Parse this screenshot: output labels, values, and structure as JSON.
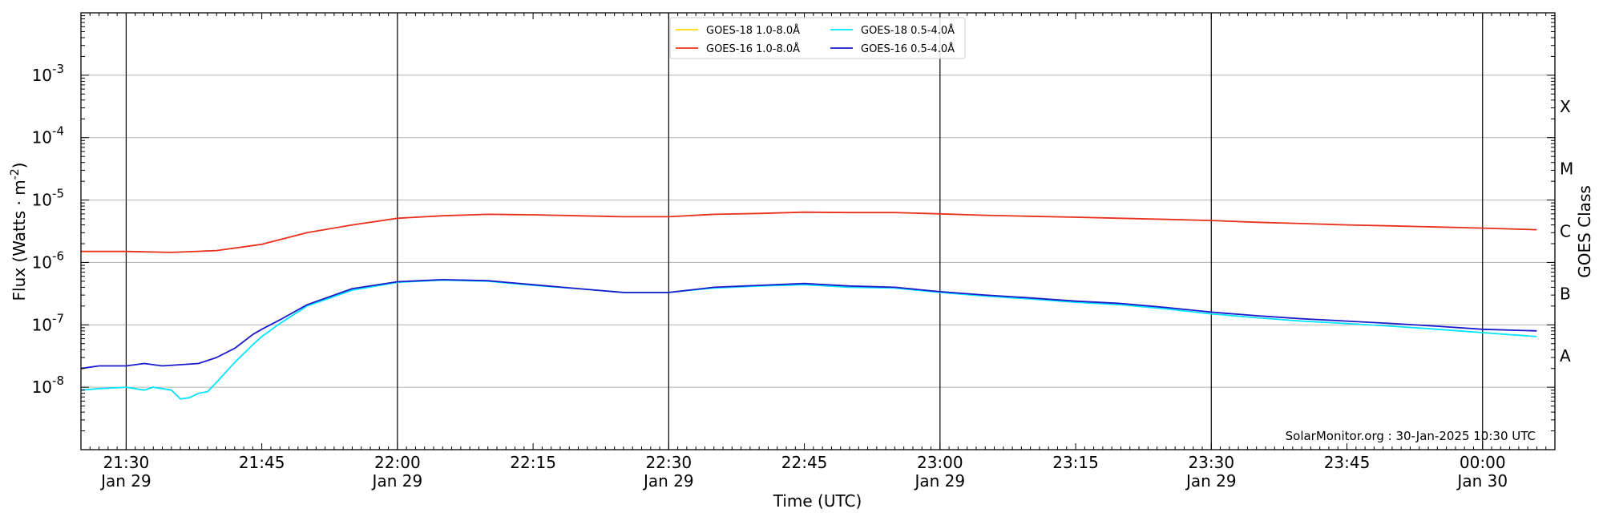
{
  "chart_data": {
    "type": "line",
    "ylabel": "Flux (Watts · m",
    "ylabel_sup": "-2",
    "ylabel_close": ")",
    "xlabel": "Time (UTC)",
    "right_label": "GOES Class",
    "credit": "SolarMonitor.org : 30-Jan-2025 10:30 UTC",
    "y_scale": "log",
    "ylim": [
      1e-09,
      0.01
    ],
    "xlim": [
      "2025-01-29 21:25",
      "2025-01-30 00:08"
    ],
    "grid": "horizontal at decades",
    "legend_position": "top-center",
    "y_ticks": [
      {
        "base": "10",
        "exp": "-8",
        "value": 1e-08
      },
      {
        "base": "10",
        "exp": "-7",
        "value": 1e-07
      },
      {
        "base": "10",
        "exp": "-6",
        "value": 1e-06
      },
      {
        "base": "10",
        "exp": "-5",
        "value": 1e-05
      },
      {
        "base": "10",
        "exp": "-4",
        "value": 0.0001
      },
      {
        "base": "10",
        "exp": "-3",
        "value": 0.001
      }
    ],
    "x_ticks": [
      {
        "time": "21:30",
        "line1": "21:30",
        "line2": "Jan 29",
        "major": true
      },
      {
        "time": "21:45",
        "line1": "21:45",
        "line2": "",
        "major": false
      },
      {
        "time": "22:00",
        "line1": "22:00",
        "line2": "Jan 29",
        "major": true
      },
      {
        "time": "22:15",
        "line1": "22:15",
        "line2": "",
        "major": false
      },
      {
        "time": "22:30",
        "line1": "22:30",
        "line2": "Jan 29",
        "major": true
      },
      {
        "time": "22:45",
        "line1": "22:45",
        "line2": "",
        "major": false
      },
      {
        "time": "23:00",
        "line1": "23:00",
        "line2": "Jan 29",
        "major": true
      },
      {
        "time": "23:15",
        "line1": "23:15",
        "line2": "",
        "major": false
      },
      {
        "time": "23:30",
        "line1": "23:30",
        "line2": "Jan 29",
        "major": true
      },
      {
        "time": "23:45",
        "line1": "23:45",
        "line2": "",
        "major": false
      },
      {
        "time": "24:00",
        "line1": "00:00",
        "line2": "Jan 30",
        "major": true
      }
    ],
    "goes_classes": [
      {
        "label": "A",
        "value": 3.16e-08
      },
      {
        "label": "B",
        "value": 3.16e-07
      },
      {
        "label": "C",
        "value": 3.16e-06
      },
      {
        "label": "M",
        "value": 3.16e-05
      },
      {
        "label": "X",
        "value": 0.000316
      }
    ],
    "series": [
      {
        "name": "GOES-18 1.0-8.0Å",
        "color": "#FFD700",
        "times": [],
        "values": []
      },
      {
        "name": "GOES-16 1.0-8.0Å",
        "color": "#E8301A",
        "times": [
          "21:25",
          "21:30",
          "21:35",
          "21:40",
          "21:45",
          "21:50",
          "21:55",
          "22:00",
          "22:05",
          "22:10",
          "22:15",
          "22:20",
          "22:25",
          "22:30",
          "22:35",
          "22:40",
          "22:45",
          "22:50",
          "22:55",
          "23:00",
          "23:05",
          "23:10",
          "23:15",
          "23:20",
          "23:25",
          "23:30",
          "23:35",
          "23:40",
          "23:45",
          "23:50",
          "23:55",
          "24:00",
          "24:06"
        ],
        "values": [
          1.5e-06,
          1.5e-06,
          1.45e-06,
          1.55e-06,
          1.95e-06,
          3e-06,
          4e-06,
          5.1e-06,
          5.6e-06,
          5.9e-06,
          5.8e-06,
          5.6e-06,
          5.4e-06,
          5.4e-06,
          5.9e-06,
          6.1e-06,
          6.4e-06,
          6.3e-06,
          6.3e-06,
          6e-06,
          5.7e-06,
          5.5e-06,
          5.3e-06,
          5.1e-06,
          4.9e-06,
          4.7e-06,
          4.4e-06,
          4.2e-06,
          4e-06,
          3.85e-06,
          3.7e-06,
          3.55e-06,
          3.35e-06
        ]
      },
      {
        "name": "GOES-18 0.5-4.0Å",
        "color": "#00E5FF",
        "times": [
          "21:25",
          "21:27",
          "21:30",
          "21:32",
          "21:33",
          "21:35",
          "21:36",
          "21:37",
          "21:38",
          "21:39",
          "21:40",
          "21:42",
          "21:44",
          "21:45",
          "21:47",
          "21:50",
          "21:55",
          "22:00",
          "22:05",
          "22:10",
          "22:15",
          "22:20",
          "22:25",
          "22:30",
          "22:35",
          "22:40",
          "22:45",
          "22:50",
          "22:55",
          "23:00",
          "23:05",
          "23:10",
          "23:15",
          "23:20",
          "23:25",
          "23:30",
          "23:35",
          "23:40",
          "23:45",
          "23:50",
          "23:55",
          "24:00",
          "24:06"
        ],
        "values": [
          9e-09,
          9.5e-09,
          1e-08,
          9e-09,
          1e-08,
          9e-09,
          6.5e-09,
          6.8e-09,
          8e-09,
          8.5e-09,
          1.2e-08,
          2.5e-08,
          4.8e-08,
          6.5e-08,
          1.05e-07,
          2e-07,
          3.6e-07,
          4.8e-07,
          5.2e-07,
          5e-07,
          4.3e-07,
          3.8e-07,
          3.3e-07,
          3.3e-07,
          3.9e-07,
          4.2e-07,
          4.4e-07,
          4e-07,
          3.9e-07,
          3.3e-07,
          2.9e-07,
          2.6e-07,
          2.3e-07,
          2.1e-07,
          1.8e-07,
          1.5e-07,
          1.3e-07,
          1.15e-07,
          1.05e-07,
          9.5e-08,
          8.5e-08,
          7.5e-08,
          6.5e-08
        ]
      },
      {
        "name": "GOES-16 0.5-4.0Å",
        "color": "#1A1ACC",
        "times": [
          "21:25",
          "21:27",
          "21:30",
          "21:32",
          "21:34",
          "21:36",
          "21:38",
          "21:40",
          "21:42",
          "21:44",
          "21:45",
          "21:47",
          "21:50",
          "21:55",
          "22:00",
          "22:05",
          "22:10",
          "22:15",
          "22:20",
          "22:25",
          "22:30",
          "22:35",
          "22:40",
          "22:45",
          "22:50",
          "22:55",
          "23:00",
          "23:05",
          "23:10",
          "23:15",
          "23:20",
          "23:25",
          "23:30",
          "23:35",
          "23:40",
          "23:45",
          "23:50",
          "23:55",
          "24:00",
          "24:06"
        ],
        "values": [
          2e-08,
          2.2e-08,
          2.2e-08,
          2.4e-08,
          2.2e-08,
          2.3e-08,
          2.4e-08,
          3e-08,
          4.2e-08,
          7e-08,
          8.5e-08,
          1.2e-07,
          2.1e-07,
          3.8e-07,
          4.9e-07,
          5.3e-07,
          5.1e-07,
          4.4e-07,
          3.8e-07,
          3.3e-07,
          3.3e-07,
          4e-07,
          4.3e-07,
          4.6e-07,
          4.2e-07,
          4e-07,
          3.4e-07,
          3e-07,
          2.7e-07,
          2.4e-07,
          2.2e-07,
          1.9e-07,
          1.6e-07,
          1.4e-07,
          1.25e-07,
          1.15e-07,
          1.05e-07,
          9.5e-08,
          8.5e-08,
          8e-08
        ]
      }
    ]
  }
}
